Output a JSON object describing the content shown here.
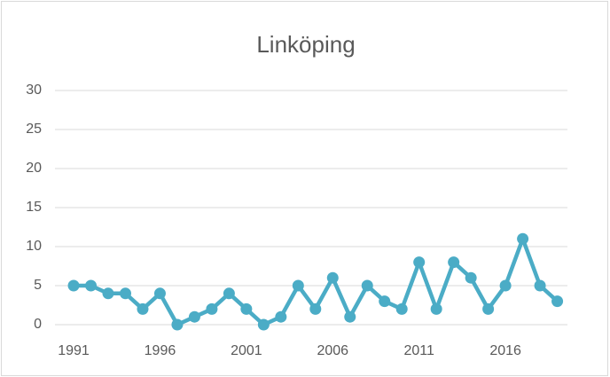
{
  "chart_data": {
    "type": "line",
    "title": "Linköping",
    "categories": [
      "1991",
      null,
      null,
      null,
      null,
      "1996",
      null,
      null,
      null,
      null,
      "2001",
      null,
      null,
      null,
      null,
      "2006",
      null,
      null,
      null,
      null,
      "2011",
      null,
      null,
      null,
      null,
      "2016",
      null,
      null,
      null
    ],
    "series": [
      {
        "name": "Linköping",
        "color": "#4bacc6",
        "values": [
          5,
          5,
          4,
          4,
          2,
          4,
          0,
          1,
          2,
          4,
          2,
          0,
          1,
          5,
          2,
          6,
          1,
          5,
          3,
          2,
          8,
          2,
          8,
          6,
          2,
          5,
          11,
          5,
          3
        ]
      }
    ],
    "ylim": [
      0,
      30
    ],
    "yticks": [
      0,
      5,
      10,
      15,
      20,
      25,
      30
    ],
    "grid": true
  }
}
